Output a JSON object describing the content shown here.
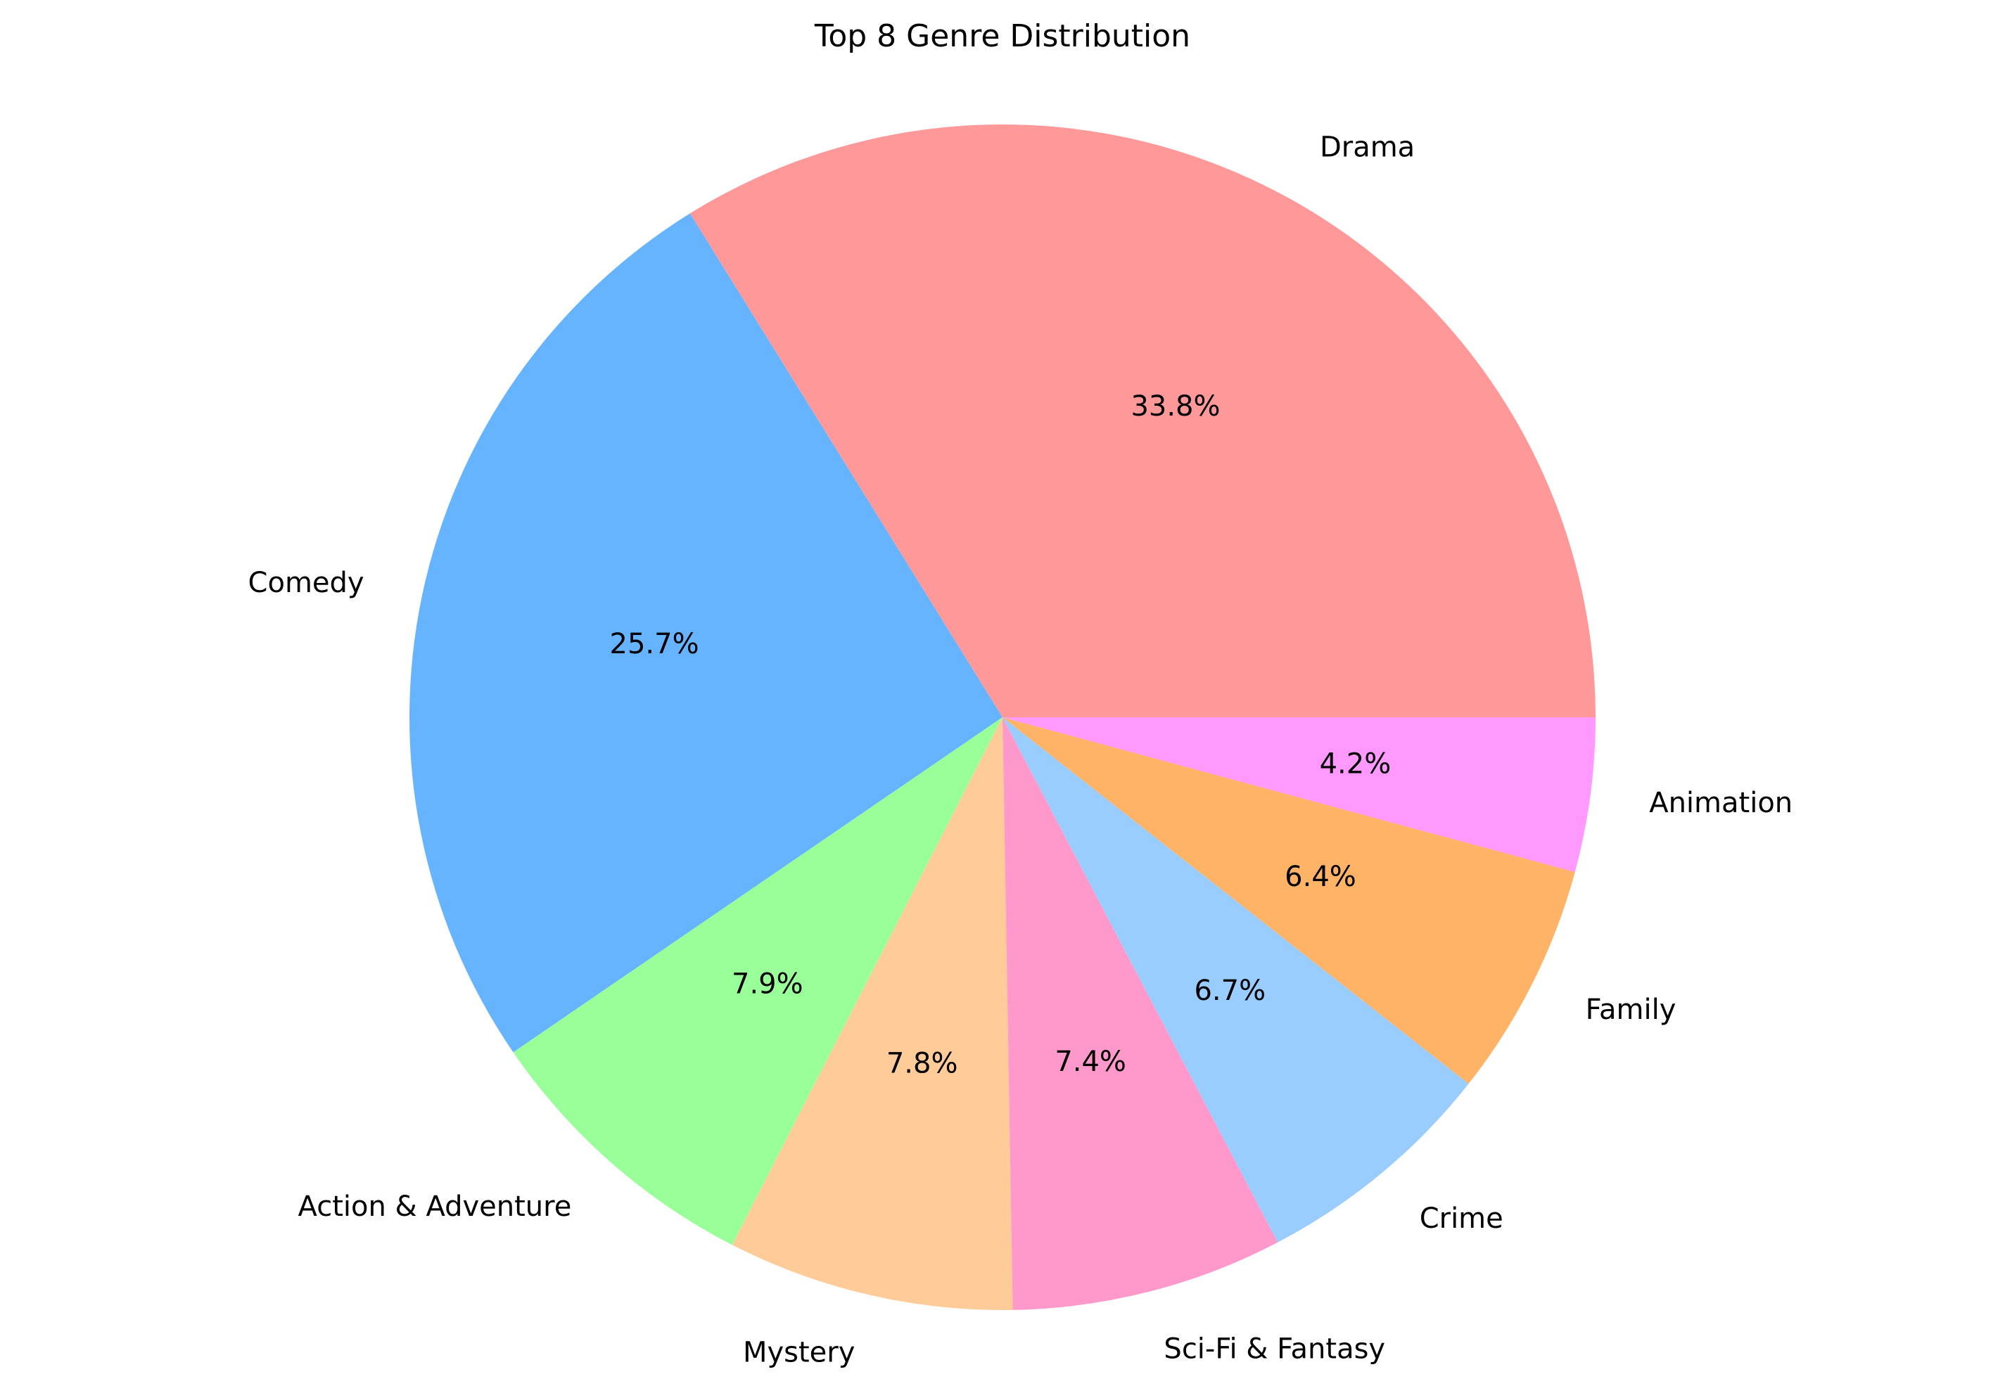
{
  "chart_data": {
    "type": "pie",
    "title": "Top 8 Genre Distribution",
    "start_angle_deg": 0,
    "direction": "counterclockwise",
    "slices": [
      {
        "label": "Drama",
        "value": 33.8,
        "pct_label": "33.8%",
        "color": "#ff9999"
      },
      {
        "label": "Comedy",
        "value": 25.7,
        "pct_label": "25.7%",
        "color": "#66b3ff"
      },
      {
        "label": "Action & Adventure",
        "value": 7.9,
        "pct_label": "7.9%",
        "color": "#99ff99"
      },
      {
        "label": "Mystery",
        "value": 7.8,
        "pct_label": "7.8%",
        "color": "#ffcc99"
      },
      {
        "label": "Sci-Fi & Fantasy",
        "value": 7.4,
        "pct_label": "7.4%",
        "color": "#ff99cc"
      },
      {
        "label": "Crime",
        "value": 6.7,
        "pct_label": "6.7%",
        "color": "#99ccff"
      },
      {
        "label": "Family",
        "value": 6.4,
        "pct_label": "6.4%",
        "color": "#ffb366"
      },
      {
        "label": "Animation",
        "value": 4.2,
        "pct_label": "4.2%",
        "color": "#ff99ff"
      }
    ]
  }
}
